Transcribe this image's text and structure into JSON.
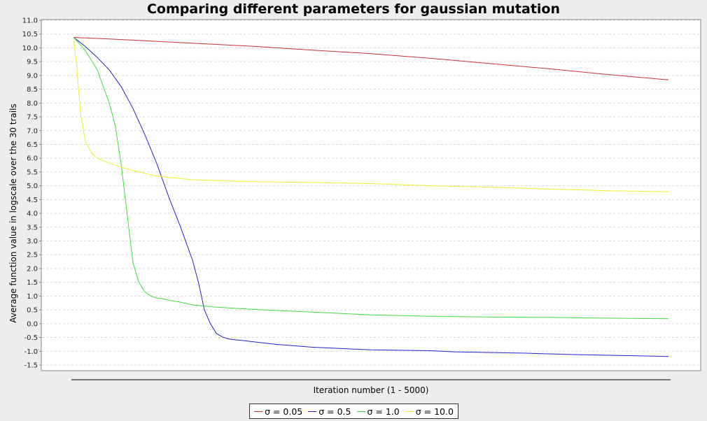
{
  "chart_data": {
    "type": "line",
    "title": "Comparing different parameters for gaussian mutation",
    "xlabel": "Iteration number (1 - 5000)",
    "ylabel": "Average function value in logscale over the 30 trails",
    "xlim": [
      0,
      5000
    ],
    "ylim": [
      -1.5,
      11.0
    ],
    "y_ticks": [
      "11.0",
      "10.5",
      "10.0",
      "9.5",
      "9.0",
      "8.5",
      "8.0",
      "7.5",
      "7.0",
      "6.5",
      "6.0",
      "5.5",
      "5.0",
      "4.5",
      "4.0",
      "3.5",
      "3.0",
      "2.5",
      "2.0",
      "1.5",
      "1.0",
      "0.5",
      "0.0",
      "-0.5",
      "-1.0",
      "-1.5"
    ],
    "x_tick_labels_shown": false,
    "grid": "horizontal dashed",
    "legend_position": "bottom-center",
    "series": [
      {
        "name": "σ = 0.05",
        "color": "#cc3333",
        "x": [
          1,
          250,
          500,
          1000,
          1500,
          2000,
          2500,
          3000,
          3500,
          4000,
          4500,
          5000
        ],
        "y": [
          10.38,
          10.33,
          10.28,
          10.17,
          10.06,
          9.92,
          9.79,
          9.62,
          9.43,
          9.24,
          9.03,
          8.84
        ]
      },
      {
        "name": "σ = 0.5",
        "color": "#2222cc",
        "x": [
          1,
          100,
          200,
          300,
          400,
          500,
          600,
          700,
          800,
          900,
          1000,
          1050,
          1100,
          1150,
          1200,
          1250,
          1300,
          1350,
          1400,
          1500,
          1700,
          2000,
          2500,
          3000,
          3200,
          3800,
          4200,
          4700,
          5000
        ],
        "y": [
          10.38,
          10.05,
          9.65,
          9.2,
          8.6,
          7.8,
          6.85,
          5.8,
          4.6,
          3.5,
          2.3,
          1.5,
          0.5,
          0.0,
          -0.35,
          -0.48,
          -0.55,
          -0.58,
          -0.6,
          -0.65,
          -0.75,
          -0.85,
          -0.95,
          -0.98,
          -1.02,
          -1.07,
          -1.12,
          -1.16,
          -1.19
        ]
      },
      {
        "name": "σ = 1.0",
        "color": "#44dd44",
        "x": [
          1,
          50,
          100,
          200,
          300,
          350,
          400,
          450,
          500,
          550,
          600,
          650,
          700,
          750,
          800,
          900,
          1000,
          1200,
          1500,
          2000,
          2500,
          3000,
          3500,
          4000,
          4300,
          5000
        ],
        "y": [
          10.38,
          10.15,
          9.9,
          9.2,
          8.0,
          7.2,
          5.8,
          4.0,
          2.2,
          1.5,
          1.15,
          1.0,
          0.93,
          0.9,
          0.85,
          0.78,
          0.68,
          0.6,
          0.52,
          0.42,
          0.32,
          0.27,
          0.24,
          0.23,
          0.21,
          0.18
        ]
      },
      {
        "name": "σ = 10.0",
        "color": "#eeee33",
        "x": [
          1,
          30,
          60,
          100,
          150,
          200,
          300,
          400,
          500,
          600,
          700,
          800,
          1000,
          1500,
          2000,
          2500,
          3000,
          3500,
          4000,
          4500,
          5000
        ],
        "y": [
          10.38,
          9.2,
          7.6,
          6.6,
          6.2,
          6.0,
          5.82,
          5.68,
          5.55,
          5.45,
          5.35,
          5.3,
          5.22,
          5.15,
          5.12,
          5.08,
          5.0,
          4.95,
          4.88,
          4.82,
          4.78
        ]
      }
    ]
  }
}
